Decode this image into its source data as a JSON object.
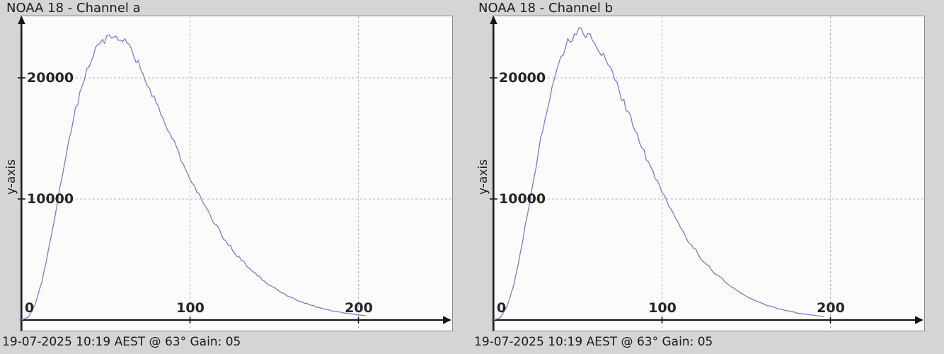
{
  "window": {
    "background": "#d5d5d5"
  },
  "colors": {
    "page_bg": "#d5d5d5",
    "plot_bg": "#fbfbfb",
    "plot_border": "#8a8a8a",
    "axis": "#161616",
    "grid": "#b3b3b3",
    "text": "#1b1b1b",
    "curve": "#7b7bd0"
  },
  "chart_data": [
    {
      "type": "line",
      "title": "NOAA 18 - Channel a",
      "ylabel": "y-axis",
      "xlabel": "",
      "caption": "19-07-2025 10:19 AEST @ 63° Gain: 05",
      "x_tick_labels": [
        "0",
        "100",
        "200"
      ],
      "x_tick_values": [
        0,
        100,
        200
      ],
      "y_tick_labels": [
        "20000",
        "10000"
      ],
      "y_tick_values": [
        20000,
        10000
      ],
      "xlim": [
        0,
        256
      ],
      "ylim": [
        0,
        25000
      ],
      "grid": true,
      "legend": "none",
      "line_color": "#7b7bd0",
      "x": [
        0,
        4,
        8,
        12,
        16,
        20,
        24,
        28,
        32,
        36,
        40,
        44,
        48,
        52,
        56,
        60,
        64,
        68,
        72,
        76,
        80,
        84,
        88,
        92,
        96,
        100,
        104,
        108,
        112,
        116,
        120,
        124,
        128,
        132,
        136,
        140,
        144,
        148,
        152,
        156,
        160,
        164,
        168,
        172,
        176,
        180,
        184,
        188,
        192,
        196,
        200,
        204
      ],
      "y": [
        0,
        230,
        1280,
        3150,
        5800,
        8720,
        11850,
        14680,
        17290,
        19500,
        21180,
        22420,
        23090,
        23520,
        23380,
        23070,
        22450,
        21430,
        20480,
        19180,
        18020,
        16650,
        15480,
        14100,
        12870,
        11800,
        10560,
        9620,
        8540,
        7710,
        6750,
        6080,
        5290,
        4790,
        4140,
        3720,
        3230,
        2820,
        2470,
        2140,
        1870,
        1620,
        1410,
        1230,
        1040,
        920,
        770,
        675,
        580,
        500,
        430,
        360
      ]
    },
    {
      "type": "line",
      "title": "NOAA 18 - Channel b",
      "ylabel": "y-axis",
      "xlabel": "",
      "caption": "19-07-2025 10:19 AEST @ 63° Gain: 05",
      "x_tick_labels": [
        "0",
        "100",
        "200"
      ],
      "x_tick_values": [
        0,
        100,
        200
      ],
      "y_tick_labels": [
        "20000",
        "10000"
      ],
      "y_tick_values": [
        20000,
        10000
      ],
      "xlim": [
        0,
        256
      ],
      "ylim": [
        0,
        25000
      ],
      "grid": true,
      "legend": "none",
      "line_color": "#7b7bd0",
      "x": [
        0,
        4,
        8,
        12,
        16,
        20,
        24,
        28,
        32,
        36,
        40,
        44,
        48,
        52,
        56,
        60,
        64,
        68,
        72,
        76,
        80,
        84,
        88,
        92,
        96,
        100,
        104,
        108,
        112,
        116,
        120,
        124,
        128,
        132,
        136,
        140,
        144,
        148,
        152,
        156,
        160,
        164,
        168,
        172,
        176,
        180,
        184,
        188,
        192,
        196
      ],
      "y": [
        0,
        180,
        1120,
        2930,
        5620,
        8700,
        11790,
        14950,
        17560,
        20050,
        21650,
        23010,
        23580,
        23870,
        23500,
        23090,
        22120,
        21180,
        19750,
        18420,
        17210,
        15690,
        14420,
        12950,
        11800,
        10480,
        9450,
        8290,
        7420,
        6460,
        5770,
        4960,
        4410,
        3770,
        3340,
        2820,
        2490,
        2100,
        1860,
        1540,
        1360,
        1130,
        990,
        820,
        715,
        590,
        520,
        425,
        370,
        300
      ]
    }
  ]
}
